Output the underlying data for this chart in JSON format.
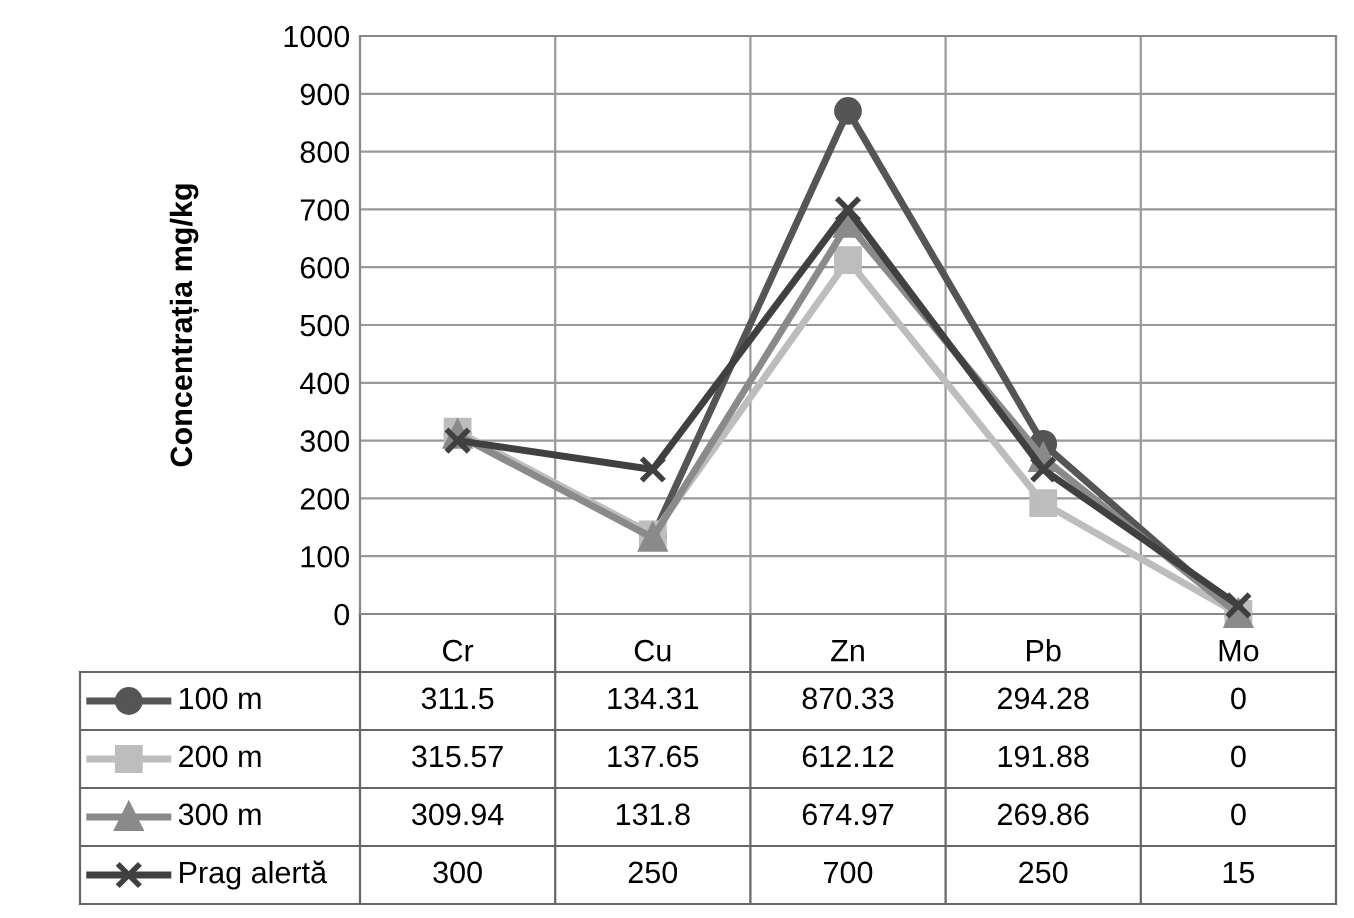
{
  "chart_data": {
    "type": "line",
    "ylabel": "Concentrația mg/kg",
    "categories": [
      "Cr",
      "Cu",
      "Zn",
      "Pb",
      "Mo"
    ],
    "series": [
      {
        "name": "100 m",
        "color": "#555555",
        "marker": "circle",
        "values": [
          311.5,
          134.31,
          870.33,
          294.28,
          0
        ]
      },
      {
        "name": "200 m",
        "color": "#bdbdbd",
        "marker": "square",
        "values": [
          315.57,
          137.65,
          612.12,
          191.88,
          0
        ]
      },
      {
        "name": "300 m",
        "color": "#8a8a8a",
        "marker": "triangle",
        "values": [
          309.94,
          131.8,
          674.97,
          269.86,
          0
        ]
      },
      {
        "name": "Prag alertă",
        "color": "#404040",
        "marker": "cross",
        "values": [
          300,
          250,
          700,
          250,
          15
        ]
      }
    ],
    "ylim": [
      0,
      1000
    ],
    "yticks": [
      0,
      100,
      200,
      300,
      400,
      500,
      600,
      700,
      800,
      900,
      1000
    ],
    "grid": "y",
    "data_labels": true,
    "legend": "bottom left"
  }
}
